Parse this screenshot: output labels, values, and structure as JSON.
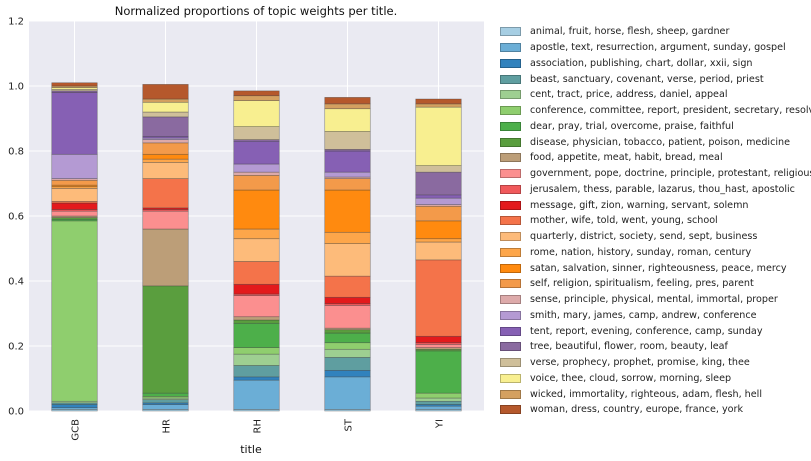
{
  "chart_data": {
    "type": "bar",
    "stacked": true,
    "title": "Normalized proportions of topic weights per title.",
    "xlabel": "title",
    "ylabel": "",
    "ylim": [
      0,
      1.2
    ],
    "yticks": [
      "0.0",
      "0.2",
      "0.4",
      "0.6",
      "0.8",
      "1.0",
      "1.2"
    ],
    "categories": [
      "GCB",
      "HR",
      "RH",
      "ST",
      "YI"
    ],
    "legend_position": "outside-right",
    "series": [
      {
        "name": "animal, fruit, horse, flesh, sheep, gardner",
        "color": "#a6cee3",
        "values": [
          0.005,
          0.005,
          0.005,
          0.005,
          0.005
        ]
      },
      {
        "name": "apostle, text, resurrection, argument, sunday, gospel",
        "color": "#6baed6",
        "values": [
          0.005,
          0.015,
          0.09,
          0.1,
          0.01
        ]
      },
      {
        "name": "association, publishing, chart, dollar, xxii, sign",
        "color": "#3182bd",
        "values": [
          0.01,
          0.005,
          0.01,
          0.02,
          0.005
        ]
      },
      {
        "name": "beast, sanctuary, covenant, verse, period, priest",
        "color": "#5f9ea0",
        "values": [
          0.005,
          0.01,
          0.035,
          0.04,
          0.01
        ]
      },
      {
        "name": "cent, tract, price, address, daniel, appeal",
        "color": "#9ecf91",
        "values": [
          0.005,
          0.005,
          0.035,
          0.025,
          0.01
        ]
      },
      {
        "name": "conference, committee, report, president, secretary, resolved",
        "color": "#8fce6e",
        "values": [
          0.555,
          0.005,
          0.02,
          0.02,
          0.015
        ]
      },
      {
        "name": "dear, pray, trial, overcome, praise, faithful",
        "color": "#4daf4a",
        "values": [
          0.005,
          0.01,
          0.075,
          0.03,
          0.13
        ]
      },
      {
        "name": "disease, physician, tobacco, patient, poison, medicine",
        "color": "#5a9e3e",
        "values": [
          0.005,
          0.33,
          0.01,
          0.01,
          0.005
        ]
      },
      {
        "name": "food, appetite, meat, habit, bread, meal",
        "color": "#bc9e78",
        "values": [
          0.005,
          0.175,
          0.01,
          0.005,
          0.005
        ]
      },
      {
        "name": "government, pope, doctrine, principle, protestant, religious",
        "color": "#fb8f8f",
        "values": [
          0.015,
          0.055,
          0.065,
          0.07,
          0.01
        ]
      },
      {
        "name": "jerusalem, thess, parable, lazarus, thou_hast, apostolic",
        "color": "#f0595b",
        "values": [
          0.005,
          0.005,
          0.005,
          0.005,
          0.005
        ]
      },
      {
        "name": "message, gift, zion, warning, servant, solemn",
        "color": "#e31a1c",
        "values": [
          0.02,
          0.005,
          0.03,
          0.02,
          0.02
        ]
      },
      {
        "name": "mother, wife, told, went, young, school",
        "color": "#f4734a",
        "values": [
          0.005,
          0.09,
          0.07,
          0.065,
          0.235
        ]
      },
      {
        "name": "quarterly, district, society, send, sept, business",
        "color": "#fdbb7a",
        "values": [
          0.04,
          0.05,
          0.07,
          0.1,
          0.055
        ]
      },
      {
        "name": "rome, nation, history, sunday, roman, century",
        "color": "#fda64a",
        "values": [
          0.005,
          0.01,
          0.03,
          0.035,
          0.01
        ]
      },
      {
        "name": "satan, salvation, sinner, righteousness, peace, mercy",
        "color": "#ff8a0f",
        "values": [
          0.005,
          0.015,
          0.12,
          0.13,
          0.055
        ]
      },
      {
        "name": "self, religion, spiritualism, feeling, pres, parent",
        "color": "#f39a4a",
        "values": [
          0.015,
          0.035,
          0.045,
          0.035,
          0.045
        ]
      },
      {
        "name": "sense, principle, physical, mental, immortal, proper",
        "color": "#ddaaaa",
        "values": [
          0.005,
          0.01,
          0.01,
          0.005,
          0.005
        ]
      },
      {
        "name": "smith, mary, james, camp, andrew, conference",
        "color": "#b49ad3",
        "values": [
          0.075,
          0.005,
          0.025,
          0.015,
          0.02
        ]
      },
      {
        "name": "tent, report, evening, conference, camp, sunday",
        "color": "#8660b4",
        "values": [
          0.19,
          0.005,
          0.07,
          0.065,
          0.01
        ]
      },
      {
        "name": "tree, beautiful, flower, room, beauty, leaf",
        "color": "#8a6aa0",
        "values": [
          0.005,
          0.06,
          0.005,
          0.005,
          0.07
        ]
      },
      {
        "name": "verse, prophecy, prophet, promise, king, thee",
        "color": "#cfbf9a",
        "values": [
          0.005,
          0.015,
          0.04,
          0.055,
          0.02
        ]
      },
      {
        "name": "voice, thee, cloud, sorrow, morning, sleep",
        "color": "#f8ef90",
        "values": [
          0.005,
          0.03,
          0.08,
          0.07,
          0.18
        ]
      },
      {
        "name": "wicked, immortality, righteous, adam, flesh, hell",
        "color": "#d4a060",
        "values": [
          0.005,
          0.01,
          0.015,
          0.015,
          0.01
        ]
      },
      {
        "name": "woman, dress, country, europe, france, york",
        "color": "#b5582c",
        "values": [
          0.01,
          0.045,
          0.015,
          0.02,
          0.015
        ]
      }
    ]
  }
}
